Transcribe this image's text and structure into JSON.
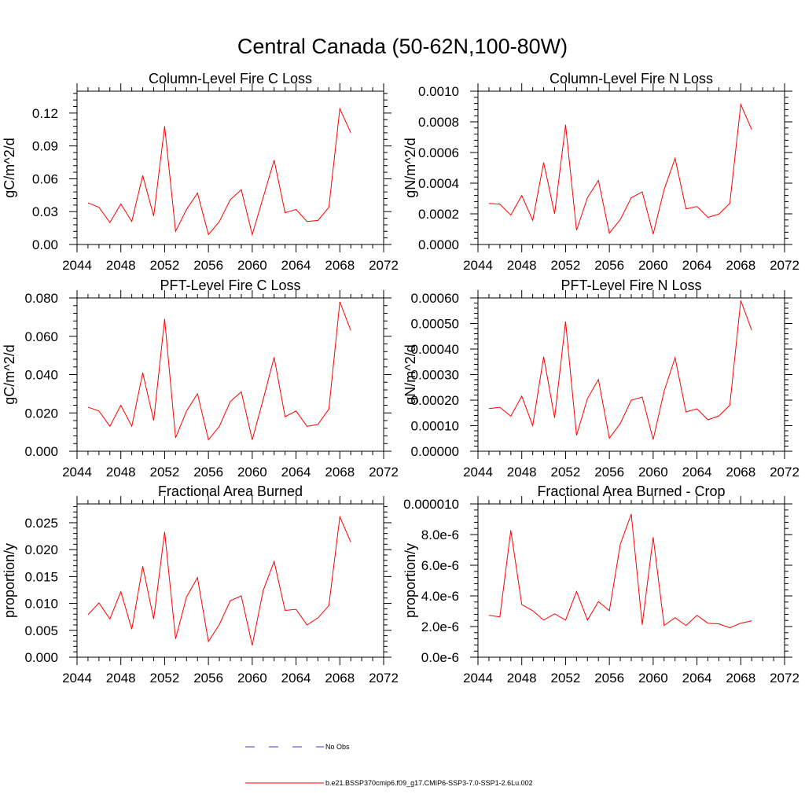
{
  "figure": {
    "title": "Central Canada (50-62N,100-80W)"
  },
  "legend": {
    "placement": "bottom-center",
    "entries": [
      {
        "label": "No Obs",
        "color": "#3c3cd2",
        "style": "dashed"
      },
      {
        "label": "b.e21.BSSP370cmip6.f09_g17.CMIP6-SSP3-7.0-SSP1-2.6Lu.002",
        "color": "#ff0000",
        "style": "solid"
      }
    ]
  },
  "chart_data": [
    {
      "type": "line",
      "title": "Column-Level Fire C Loss",
      "ylabel": "gC/m^2/d",
      "xlim": [
        2044,
        2072
      ],
      "ylim": [
        0,
        0.14
      ],
      "xticks": [
        2044,
        2048,
        2052,
        2056,
        2060,
        2064,
        2068,
        2072
      ],
      "xtick_labels": [
        "2044",
        "2048",
        "2052",
        "2056",
        "2060",
        "2064",
        "2068",
        "2072"
      ],
      "yticks": [
        0,
        0.03,
        0.06,
        0.09,
        0.12
      ],
      "ytick_labels": [
        "0.00",
        "0.03",
        "0.06",
        "0.09",
        "0.12"
      ],
      "x": [
        2045,
        2046,
        2047,
        2048,
        2049,
        2050,
        2051,
        2052,
        2053,
        2054,
        2055,
        2056,
        2057,
        2058,
        2059,
        2060,
        2061,
        2062,
        2063,
        2064,
        2065,
        2066,
        2067,
        2068,
        2069
      ],
      "series": [
        {
          "color": "#ff0000",
          "values": [
            0.038,
            0.034,
            0.02,
            0.037,
            0.021,
            0.063,
            0.026,
            0.108,
            0.012,
            0.032,
            0.047,
            0.009,
            0.021,
            0.041,
            0.05,
            0.009,
            0.043,
            0.077,
            0.029,
            0.032,
            0.021,
            0.022,
            0.034,
            0.124,
            0.102
          ]
        }
      ]
    },
    {
      "type": "line",
      "title": "Column-Level Fire N Loss",
      "ylabel": "gN/m^2/d",
      "xlim": [
        2044,
        2072
      ],
      "ylim": [
        0,
        0.001
      ],
      "xticks": [
        2044,
        2048,
        2052,
        2056,
        2060,
        2064,
        2068,
        2072
      ],
      "xtick_labels": [
        "2044",
        "2048",
        "2052",
        "2056",
        "2060",
        "2064",
        "2068",
        "2072"
      ],
      "yticks": [
        0,
        0.0002,
        0.0004,
        0.0006,
        0.0008,
        0.001
      ],
      "ytick_labels": [
        "0.0000",
        "0.0002",
        "0.0004",
        "0.0006",
        "0.0008",
        "0.0010"
      ],
      "x": [
        2045,
        2046,
        2047,
        2048,
        2049,
        2050,
        2051,
        2052,
        2053,
        2054,
        2055,
        2056,
        2057,
        2058,
        2059,
        2060,
        2061,
        2062,
        2063,
        2064,
        2065,
        2066,
        2067,
        2068,
        2069
      ],
      "series": [
        {
          "color": "#ff0000",
          "values": [
            0.000268,
            0.000263,
            0.000192,
            0.00032,
            0.000157,
            0.000535,
            0.0002,
            0.000781,
            9.3e-05,
            0.000305,
            0.000418,
            7.4e-05,
            0.000163,
            0.000305,
            0.000343,
            6.8e-05,
            0.000358,
            0.000562,
            0.000232,
            0.000248,
            0.000177,
            0.000198,
            0.000268,
            0.000914,
            0.00075
          ]
        }
      ]
    },
    {
      "type": "line",
      "title": "PFT-Level Fire C Loss",
      "ylabel": "gC/m^2/d",
      "xlim": [
        2044,
        2072
      ],
      "ylim": [
        0,
        0.08
      ],
      "xticks": [
        2044,
        2048,
        2052,
        2056,
        2060,
        2064,
        2068,
        2072
      ],
      "xtick_labels": [
        "2044",
        "2048",
        "2052",
        "2056",
        "2060",
        "2064",
        "2068",
        "2072"
      ],
      "yticks": [
        0,
        0.02,
        0.04,
        0.06,
        0.08
      ],
      "ytick_labels": [
        "0.000",
        "0.020",
        "0.040",
        "0.060",
        "0.080"
      ],
      "x": [
        2045,
        2046,
        2047,
        2048,
        2049,
        2050,
        2051,
        2052,
        2053,
        2054,
        2055,
        2056,
        2057,
        2058,
        2059,
        2060,
        2061,
        2062,
        2063,
        2064,
        2065,
        2066,
        2067,
        2068,
        2069
      ],
      "series": [
        {
          "color": "#ff0000",
          "values": [
            0.023,
            0.021,
            0.013,
            0.024,
            0.013,
            0.041,
            0.016,
            0.069,
            0.007,
            0.021,
            0.03,
            0.006,
            0.013,
            0.026,
            0.031,
            0.006,
            0.027,
            0.049,
            0.018,
            0.021,
            0.013,
            0.014,
            0.022,
            0.078,
            0.063
          ]
        }
      ]
    },
    {
      "type": "line",
      "title": "PFT-Level Fire N Loss",
      "ylabel": "gN/m^2/d",
      "xlim": [
        2044,
        2072
      ],
      "ylim": [
        0,
        0.0006
      ],
      "xticks": [
        2044,
        2048,
        2052,
        2056,
        2060,
        2064,
        2068,
        2072
      ],
      "xtick_labels": [
        "2044",
        "2048",
        "2052",
        "2056",
        "2060",
        "2064",
        "2068",
        "2072"
      ],
      "yticks": [
        0,
        0.0001,
        0.0002,
        0.0003,
        0.0004,
        0.0005,
        0.0006
      ],
      "ytick_labels": [
        "0.00000",
        "0.00010",
        "0.00020",
        "0.00030",
        "0.00040",
        "0.00050",
        "0.00060"
      ],
      "x": [
        2045,
        2046,
        2047,
        2048,
        2049,
        2050,
        2051,
        2052,
        2053,
        2054,
        2055,
        2056,
        2057,
        2058,
        2059,
        2060,
        2061,
        2062,
        2063,
        2064,
        2065,
        2066,
        2067,
        2068,
        2069
      ],
      "series": [
        {
          "color": "#ff0000",
          "values": [
            0.000167,
            0.000172,
            0.000137,
            0.000216,
            0.0001,
            0.00037,
            0.000131,
            0.000508,
            6.2e-05,
            0.000206,
            0.000281,
            5.1e-05,
            0.000109,
            0.0002,
            0.000212,
            4.6e-05,
            0.000235,
            0.000366,
            0.000154,
            0.000166,
            0.000123,
            0.000138,
            0.00018,
            0.00059,
            0.000474
          ]
        }
      ]
    },
    {
      "type": "line",
      "title": "Fractional Area Burned",
      "ylabel": "proportion/y",
      "xlim": [
        2044,
        2072
      ],
      "ylim": [
        0,
        0.0285
      ],
      "xticks": [
        2044,
        2048,
        2052,
        2056,
        2060,
        2064,
        2068,
        2072
      ],
      "xtick_labels": [
        "2044",
        "2048",
        "2052",
        "2056",
        "2060",
        "2064",
        "2068",
        "2072"
      ],
      "yticks": [
        0,
        0.005,
        0.01,
        0.015,
        0.02,
        0.025
      ],
      "ytick_labels": [
        "0.000",
        "0.005",
        "0.010",
        "0.015",
        "0.020",
        "0.025"
      ],
      "x": [
        2045,
        2046,
        2047,
        2048,
        2049,
        2050,
        2051,
        2052,
        2053,
        2054,
        2055,
        2056,
        2057,
        2058,
        2059,
        2060,
        2061,
        2062,
        2063,
        2064,
        2065,
        2066,
        2067,
        2068,
        2069
      ],
      "series": [
        {
          "color": "#ff0000",
          "values": [
            0.0079,
            0.0101,
            0.0071,
            0.0122,
            0.0052,
            0.0169,
            0.0071,
            0.0233,
            0.0034,
            0.0112,
            0.0148,
            0.0029,
            0.0061,
            0.0105,
            0.0114,
            0.0022,
            0.0124,
            0.0178,
            0.0087,
            0.0089,
            0.006,
            0.0073,
            0.0096,
            0.0261,
            0.0214
          ]
        }
      ]
    },
    {
      "type": "line",
      "title": "Fractional Area Burned - Crop",
      "ylabel": "proportion/y",
      "xlim": [
        2044,
        2072
      ],
      "ylim": [
        0,
        1e-05
      ],
      "xticks": [
        2044,
        2048,
        2052,
        2056,
        2060,
        2064,
        2068,
        2072
      ],
      "xtick_labels": [
        "2044",
        "2048",
        "2052",
        "2056",
        "2060",
        "2064",
        "2068",
        "2072"
      ],
      "yticks": [
        0,
        2e-06,
        4e-06,
        6e-06,
        8e-06,
        1e-05
      ],
      "ytick_labels": [
        "0.0e-6",
        "2.0e-6",
        "4.0e-6",
        "6.0e-6",
        "8.0e-6",
        "0.000010"
      ],
      "x": [
        2045,
        2046,
        2047,
        2048,
        2049,
        2050,
        2051,
        2052,
        2053,
        2054,
        2055,
        2056,
        2057,
        2058,
        2059,
        2060,
        2061,
        2062,
        2063,
        2064,
        2065,
        2066,
        2067,
        2068,
        2069
      ],
      "series": [
        {
          "color": "#ff0000",
          "values": [
            2.73e-06,
            2.63e-06,
            8.28e-06,
            3.43e-06,
            3.03e-06,
            2.42e-06,
            2.83e-06,
            2.42e-06,
            4.29e-06,
            2.42e-06,
            3.63e-06,
            3.03e-06,
            7.37e-06,
            9.34e-06,
            2.12e-06,
            7.83e-06,
            2.07e-06,
            2.58e-06,
            2.07e-06,
            2.73e-06,
            2.22e-06,
            2.17e-06,
            1.92e-06,
            2.22e-06,
            2.37e-06
          ]
        }
      ]
    }
  ]
}
